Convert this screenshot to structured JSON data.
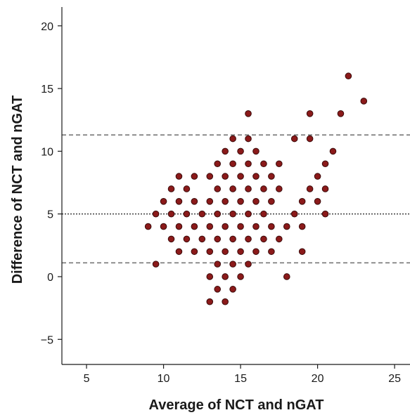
{
  "chart_data": {
    "type": "scatter",
    "title": "",
    "xlabel": "Average of NCT and nGAT",
    "ylabel": "Difference of NCT and nGAT",
    "xlim": [
      3.4,
      26
    ],
    "ylim": [
      -7,
      21.5
    ],
    "xticks": [
      5,
      10,
      15,
      20,
      25
    ],
    "yticks": [
      -5,
      0,
      5,
      10,
      15,
      20
    ],
    "xtick_labels": [
      "5",
      "10",
      "15",
      "20",
      "25"
    ],
    "ytick_labels": [
      "−5",
      "0",
      "5",
      "10",
      "15",
      "20"
    ],
    "grid": false,
    "reference_lines": [
      {
        "name": "upper limit of agreement",
        "y": 11.3,
        "style": "dashed"
      },
      {
        "name": "mean difference",
        "y": 5.0,
        "style": "dotted"
      },
      {
        "name": "lower limit of agreement",
        "y": 1.1,
        "style": "dashed"
      }
    ],
    "marker_color": "#8b1a1a",
    "marker_edge": "#3a0a0a",
    "points": [
      {
        "x": 9.0,
        "y": 4
      },
      {
        "x": 9.5,
        "y": 5
      },
      {
        "x": 9.5,
        "y": 1
      },
      {
        "x": 10.0,
        "y": 6
      },
      {
        "x": 10.0,
        "y": 4
      },
      {
        "x": 10.5,
        "y": 7
      },
      {
        "x": 10.5,
        "y": 5
      },
      {
        "x": 10.5,
        "y": 3
      },
      {
        "x": 11.0,
        "y": 8
      },
      {
        "x": 11.0,
        "y": 6
      },
      {
        "x": 11.0,
        "y": 4
      },
      {
        "x": 11.0,
        "y": 2
      },
      {
        "x": 11.5,
        "y": 7
      },
      {
        "x": 11.5,
        "y": 5
      },
      {
        "x": 11.5,
        "y": 3
      },
      {
        "x": 12.0,
        "y": 8
      },
      {
        "x": 12.0,
        "y": 6
      },
      {
        "x": 12.0,
        "y": 4
      },
      {
        "x": 12.0,
        "y": 2
      },
      {
        "x": 12.5,
        "y": 5
      },
      {
        "x": 12.5,
        "y": 3
      },
      {
        "x": 13.0,
        "y": 8
      },
      {
        "x": 13.0,
        "y": 6
      },
      {
        "x": 13.0,
        "y": 4
      },
      {
        "x": 13.0,
        "y": 2
      },
      {
        "x": 13.0,
        "y": 0
      },
      {
        "x": 13.0,
        "y": -2
      },
      {
        "x": 13.5,
        "y": 9
      },
      {
        "x": 13.5,
        "y": 7
      },
      {
        "x": 13.5,
        "y": 5
      },
      {
        "x": 13.5,
        "y": 3
      },
      {
        "x": 13.5,
        "y": 1
      },
      {
        "x": 13.5,
        "y": -1
      },
      {
        "x": 14.0,
        "y": 10
      },
      {
        "x": 14.0,
        "y": 8
      },
      {
        "x": 14.0,
        "y": 6
      },
      {
        "x": 14.0,
        "y": 4
      },
      {
        "x": 14.0,
        "y": 2
      },
      {
        "x": 14.0,
        "y": 0
      },
      {
        "x": 14.0,
        "y": -2
      },
      {
        "x": 14.5,
        "y": 11
      },
      {
        "x": 14.5,
        "y": 9
      },
      {
        "x": 14.5,
        "y": 7
      },
      {
        "x": 14.5,
        "y": 5
      },
      {
        "x": 14.5,
        "y": 3
      },
      {
        "x": 14.5,
        "y": 1
      },
      {
        "x": 14.5,
        "y": -1
      },
      {
        "x": 15.0,
        "y": 10
      },
      {
        "x": 15.0,
        "y": 8
      },
      {
        "x": 15.0,
        "y": 6
      },
      {
        "x": 15.0,
        "y": 4
      },
      {
        "x": 15.0,
        "y": 2
      },
      {
        "x": 15.0,
        "y": 0
      },
      {
        "x": 15.5,
        "y": 13
      },
      {
        "x": 15.5,
        "y": 11
      },
      {
        "x": 15.5,
        "y": 9
      },
      {
        "x": 15.5,
        "y": 7
      },
      {
        "x": 15.5,
        "y": 5
      },
      {
        "x": 15.5,
        "y": 3
      },
      {
        "x": 15.5,
        "y": 1
      },
      {
        "x": 16.0,
        "y": 10
      },
      {
        "x": 16.0,
        "y": 8
      },
      {
        "x": 16.0,
        "y": 6
      },
      {
        "x": 16.0,
        "y": 4
      },
      {
        "x": 16.0,
        "y": 2
      },
      {
        "x": 16.5,
        "y": 9
      },
      {
        "x": 16.5,
        "y": 7
      },
      {
        "x": 16.5,
        "y": 5
      },
      {
        "x": 16.5,
        "y": 3
      },
      {
        "x": 17.0,
        "y": 8
      },
      {
        "x": 17.0,
        "y": 6
      },
      {
        "x": 17.0,
        "y": 4
      },
      {
        "x": 17.0,
        "y": 2
      },
      {
        "x": 17.5,
        "y": 9
      },
      {
        "x": 17.5,
        "y": 7
      },
      {
        "x": 17.5,
        "y": 3
      },
      {
        "x": 18.0,
        "y": 4
      },
      {
        "x": 18.0,
        "y": 0
      },
      {
        "x": 18.5,
        "y": 11
      },
      {
        "x": 18.5,
        "y": 5
      },
      {
        "x": 19.0,
        "y": 6
      },
      {
        "x": 19.0,
        "y": 4
      },
      {
        "x": 19.0,
        "y": 2
      },
      {
        "x": 19.5,
        "y": 13
      },
      {
        "x": 19.5,
        "y": 11
      },
      {
        "x": 19.5,
        "y": 7
      },
      {
        "x": 20.0,
        "y": 8
      },
      {
        "x": 20.0,
        "y": 6
      },
      {
        "x": 20.5,
        "y": 9
      },
      {
        "x": 20.5,
        "y": 7
      },
      {
        "x": 20.5,
        "y": 5
      },
      {
        "x": 21.0,
        "y": 10
      },
      {
        "x": 21.5,
        "y": 13
      },
      {
        "x": 22.0,
        "y": 16
      },
      {
        "x": 23.0,
        "y": 14
      }
    ]
  }
}
